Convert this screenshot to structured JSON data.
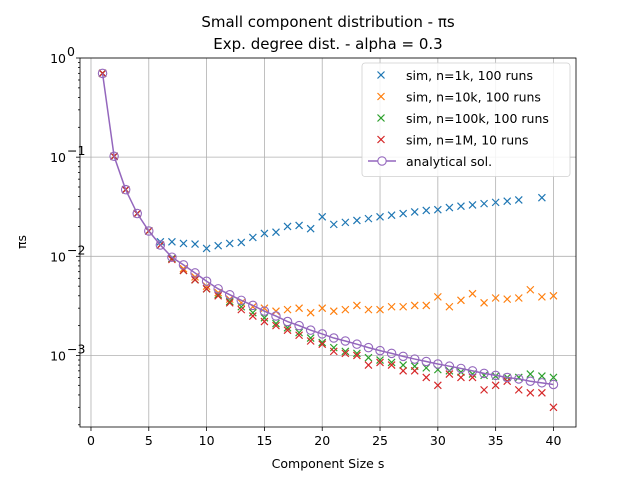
{
  "chart_data": {
    "type": "scatter",
    "title": [
      "Small component distribution - πs",
      "Exp. degree dist. - alpha = 0.3"
    ],
    "xlabel": "Component Size s",
    "ylabel": "πs",
    "xlim": [
      -0.95,
      41.95
    ],
    "ylim": [
      0.00019,
      1.0
    ],
    "yscale": "log",
    "grid": true,
    "legend_position": "upper right",
    "x_ticks": [
      0,
      5,
      10,
      15,
      20,
      25,
      30,
      35,
      40
    ],
    "y_ticks": [
      {
        "value": 0.001,
        "label": "10",
        "exp": "−3"
      },
      {
        "value": 0.01,
        "label": "10",
        "exp": "−2"
      },
      {
        "value": 0.1,
        "label": "10",
        "exp": "−1"
      },
      {
        "value": 1.0,
        "label": "10",
        "exp": "0"
      }
    ],
    "series": [
      {
        "name": "sim, n=1k, 100 runs",
        "color": "#1f77b4",
        "marker": "x",
        "x": [
          1,
          2,
          3,
          4,
          5,
          6,
          7,
          8,
          9,
          10,
          11,
          12,
          13,
          14,
          15,
          16,
          17,
          18,
          19,
          20,
          21,
          22,
          23,
          24,
          25,
          26,
          27,
          28,
          29,
          30,
          31,
          32,
          33,
          34,
          35,
          36,
          37,
          39
        ],
        "y": [
          0.7,
          0.102,
          0.047,
          0.027,
          0.018,
          0.014,
          0.014,
          0.0135,
          0.0133,
          0.012,
          0.0128,
          0.0135,
          0.0138,
          0.0155,
          0.017,
          0.0175,
          0.02,
          0.0205,
          0.019,
          0.025,
          0.021,
          0.022,
          0.023,
          0.024,
          0.025,
          0.026,
          0.027,
          0.028,
          0.029,
          0.0295,
          0.031,
          0.032,
          0.033,
          0.034,
          0.035,
          0.036,
          0.037,
          0.039
        ]
      },
      {
        "name": "sim, n=10k, 100 runs",
        "color": "#ff7f0e",
        "marker": "x",
        "x": [
          1,
          2,
          3,
          4,
          5,
          6,
          7,
          8,
          9,
          10,
          11,
          12,
          13,
          14,
          15,
          16,
          17,
          18,
          19,
          20,
          21,
          22,
          23,
          24,
          25,
          26,
          27,
          28,
          29,
          30,
          31,
          32,
          33,
          34,
          35,
          36,
          37,
          38,
          39,
          40
        ],
        "y": [
          0.7,
          0.102,
          0.047,
          0.027,
          0.018,
          0.013,
          0.0095,
          0.0075,
          0.0062,
          0.005,
          0.0043,
          0.0037,
          0.0034,
          0.0031,
          0.003,
          0.0028,
          0.0029,
          0.003,
          0.0027,
          0.003,
          0.0028,
          0.0029,
          0.0032,
          0.0029,
          0.0029,
          0.0031,
          0.0031,
          0.0032,
          0.0032,
          0.0039,
          0.0031,
          0.0036,
          0.0042,
          0.0034,
          0.0038,
          0.0037,
          0.0038,
          0.0046,
          0.0039,
          0.004
        ]
      },
      {
        "name": "sim, n=100k, 100 runs",
        "color": "#2ca02c",
        "marker": "x",
        "x": [
          1,
          2,
          3,
          4,
          5,
          6,
          7,
          8,
          9,
          10,
          11,
          12,
          13,
          14,
          15,
          16,
          17,
          18,
          19,
          20,
          21,
          22,
          23,
          24,
          25,
          26,
          27,
          28,
          29,
          30,
          31,
          32,
          33,
          34,
          35,
          36,
          37,
          38,
          39,
          40
        ],
        "y": [
          0.7,
          0.102,
          0.047,
          0.027,
          0.018,
          0.013,
          0.0095,
          0.0072,
          0.0058,
          0.0047,
          0.0041,
          0.0035,
          0.0031,
          0.0027,
          0.0024,
          0.0021,
          0.0019,
          0.0017,
          0.0015,
          0.00135,
          0.0012,
          0.0011,
          0.00105,
          0.00095,
          0.0009,
          0.00085,
          0.0008,
          0.00078,
          0.00075,
          0.00072,
          0.0007,
          0.00068,
          0.00065,
          0.00063,
          0.00062,
          0.0006,
          0.0006,
          0.00065,
          0.00062,
          0.0006
        ]
      },
      {
        "name": "sim, n=1M, 10 runs",
        "color": "#d62728",
        "marker": "x",
        "x": [
          1,
          2,
          3,
          4,
          5,
          6,
          7,
          8,
          9,
          10,
          11,
          12,
          13,
          14,
          15,
          16,
          17,
          18,
          19,
          20,
          21,
          22,
          23,
          24,
          25,
          26,
          27,
          28,
          29,
          30,
          31,
          32,
          33,
          34,
          35,
          36,
          37,
          38,
          39,
          40
        ],
        "y": [
          0.7,
          0.102,
          0.047,
          0.027,
          0.018,
          0.013,
          0.0093,
          0.0072,
          0.0058,
          0.0047,
          0.004,
          0.0034,
          0.0029,
          0.0025,
          0.0022,
          0.002,
          0.0018,
          0.0016,
          0.0014,
          0.0013,
          0.0011,
          0.00105,
          0.001,
          0.0008,
          0.00085,
          0.0008,
          0.0007,
          0.0007,
          0.0006,
          0.0005,
          0.00065,
          0.0006,
          0.0006,
          0.00045,
          0.0005,
          0.00055,
          0.00045,
          0.00042,
          0.00042,
          0.0003
        ]
      },
      {
        "name": "analytical sol.",
        "color": "#9467bd",
        "marker": "o",
        "line": true,
        "x": [
          1,
          2,
          3,
          4,
          5,
          6,
          7,
          8,
          9,
          10,
          11,
          12,
          13,
          14,
          15,
          16,
          17,
          18,
          19,
          20,
          21,
          22,
          23,
          24,
          25,
          26,
          27,
          28,
          29,
          30,
          31,
          32,
          33,
          34,
          35,
          36,
          37,
          38,
          39,
          40
        ],
        "y": [
          0.7,
          0.102,
          0.047,
          0.027,
          0.018,
          0.013,
          0.0098,
          0.0082,
          0.0068,
          0.0056,
          0.0047,
          0.0041,
          0.0036,
          0.0032,
          0.0028,
          0.0025,
          0.0022,
          0.002,
          0.0018,
          0.00165,
          0.0015,
          0.0014,
          0.0013,
          0.0012,
          0.00112,
          0.00105,
          0.00098,
          0.00092,
          0.00087,
          0.00082,
          0.00078,
          0.00074,
          0.0007,
          0.00066,
          0.00063,
          0.0006,
          0.00058,
          0.00055,
          0.00053,
          0.00051
        ]
      }
    ]
  }
}
